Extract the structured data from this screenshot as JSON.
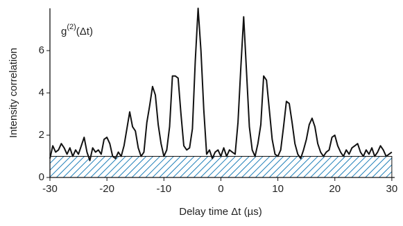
{
  "chart_data": {
    "type": "line",
    "annotation": {
      "base": "g",
      "sup": "(2)",
      "arg": "(Δt)"
    },
    "xlabel": "Delay time  Δt (µs)",
    "ylabel": "Intensity correlation",
    "xlim": [
      -30,
      30.5
    ],
    "ylim": [
      0,
      8
    ],
    "xticks": [
      -30,
      -20,
      -10,
      0,
      10,
      20,
      30
    ],
    "yticks": [
      0,
      2,
      4,
      6
    ],
    "baseline": 1,
    "baseline_color": "#1f7fb8",
    "color": "#111111",
    "x": [
      -30,
      -29.5,
      -29,
      -28.5,
      -28,
      -27.5,
      -27,
      -26.5,
      -26,
      -25.5,
      -25,
      -24.5,
      -24,
      -23.5,
      -23,
      -22.5,
      -22,
      -21.5,
      -21,
      -20.5,
      -20,
      -19.5,
      -19,
      -18.5,
      -18,
      -17.5,
      -17,
      -16.5,
      -16,
      -15.5,
      -15,
      -14.5,
      -14,
      -13.5,
      -13,
      -12.5,
      -12,
      -11.5,
      -11,
      -10.5,
      -10,
      -9.5,
      -9,
      -8.5,
      -8,
      -7.5,
      -7,
      -6.5,
      -6,
      -5.5,
      -5,
      -4.5,
      -4,
      -3.5,
      -3,
      -2.5,
      -2,
      -1.5,
      -1,
      -0.5,
      0,
      0.5,
      1,
      1.5,
      2,
      2.5,
      3,
      3.5,
      4,
      4.5,
      5,
      5.5,
      6,
      6.5,
      7,
      7.5,
      8,
      8.5,
      9,
      9.5,
      10,
      10.5,
      11,
      11.5,
      12,
      12.5,
      13,
      13.5,
      14,
      14.5,
      15,
      15.5,
      16,
      16.5,
      17,
      17.5,
      18,
      18.5,
      19,
      19.5,
      20,
      20.5,
      21,
      21.5,
      22,
      22.5,
      23,
      23.5,
      24,
      24.5,
      25,
      25.5,
      26,
      26.5,
      27,
      27.5,
      28,
      28.5,
      29,
      29.5,
      30
    ],
    "values": [
      0.9,
      1.5,
      1.2,
      1.3,
      1.6,
      1.4,
      1.1,
      1.4,
      1.0,
      1.3,
      1.1,
      1.5,
      1.9,
      1.2,
      0.8,
      1.4,
      1.2,
      1.3,
      1.1,
      1.8,
      1.9,
      1.6,
      1.0,
      0.9,
      1.2,
      1.0,
      1.5,
      2.3,
      3.1,
      2.4,
      2.2,
      1.4,
      1.0,
      1.2,
      2.6,
      3.4,
      4.3,
      3.9,
      2.5,
      1.6,
      1.0,
      1.3,
      2.4,
      4.8,
      4.8,
      4.7,
      3.0,
      1.5,
      1.3,
      1.4,
      2.3,
      5.5,
      8.0,
      6.0,
      3.2,
      1.1,
      1.3,
      0.9,
      1.2,
      1.3,
      1.0,
      1.4,
      1.0,
      1.3,
      1.2,
      1.1,
      2.6,
      5.2,
      7.6,
      5.0,
      2.4,
      1.3,
      1.0,
      1.6,
      2.5,
      4.8,
      4.6,
      3.2,
      1.8,
      1.1,
      1.0,
      1.3,
      2.4,
      3.6,
      3.5,
      2.6,
      1.6,
      1.1,
      0.9,
      1.3,
      1.8,
      2.5,
      2.8,
      2.4,
      1.6,
      1.2,
      1.0,
      1.2,
      1.3,
      1.9,
      2.0,
      1.5,
      1.2,
      1.0,
      1.3,
      1.1,
      1.4,
      1.5,
      1.6,
      1.2,
      1.0,
      1.3,
      1.1,
      1.4,
      1.0,
      1.2,
      1.5,
      1.3,
      1.0,
      1.1,
      1.2
    ]
  }
}
